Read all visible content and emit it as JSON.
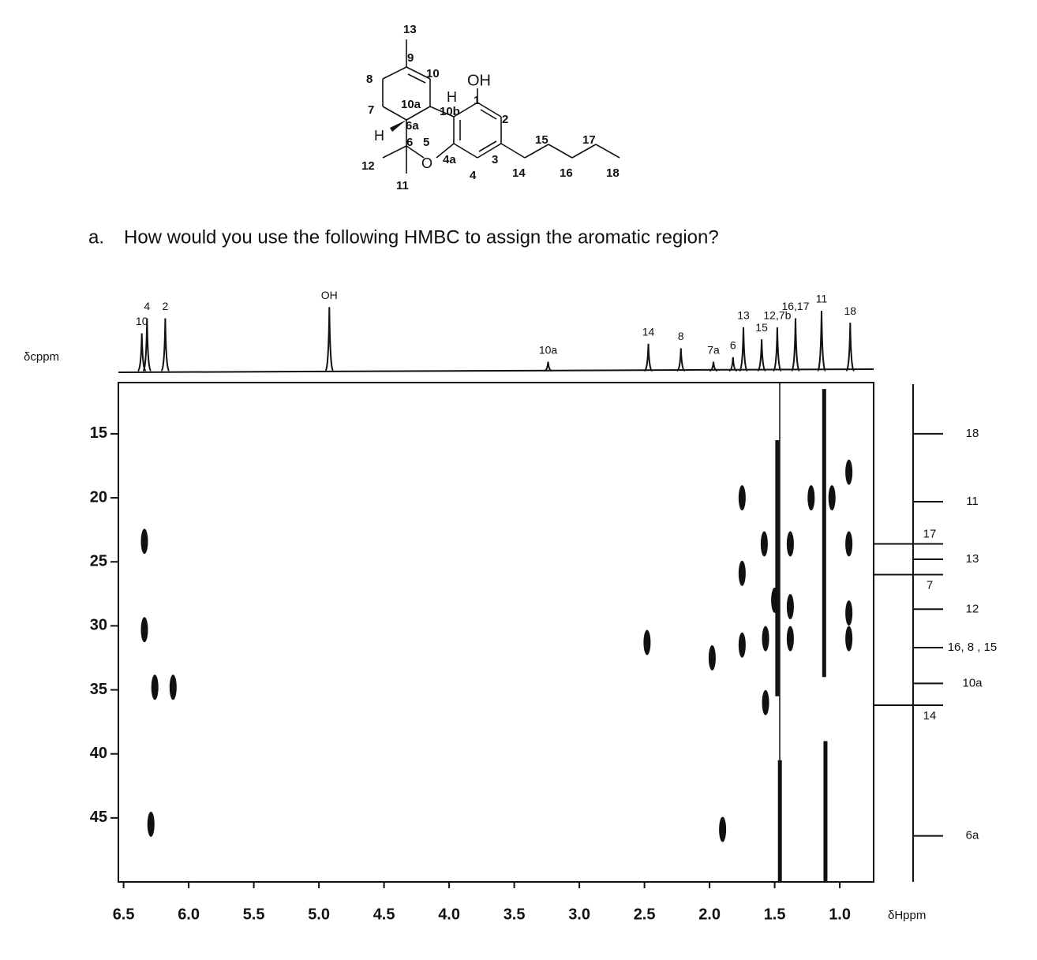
{
  "structure": {
    "labels": [
      "13",
      "9",
      "10",
      "8",
      "OH",
      "H",
      "10a",
      "10b",
      "1",
      "7",
      "2",
      "6a",
      "H",
      "6",
      "5",
      "15",
      "17",
      "12",
      "O",
      "4a",
      "3",
      "14",
      "16",
      "18",
      "11",
      "4"
    ]
  },
  "question": {
    "marker": "a.",
    "text": "How would you use the following HMBC to assign the aromatic region?"
  },
  "chart_data": {
    "type": "hmbc",
    "ylabel": "δcppm",
    "xlabel": "δHppm",
    "xlim": [
      6.54,
      0.74
    ],
    "ylim": [
      11,
      50
    ],
    "xticks": [
      6.5,
      {
        "value": 6,
        "label": "6.0"
      },
      5.5,
      {
        "value": 5,
        "label": "5.0"
      },
      4.5,
      {
        "value": 4,
        "label": "4.0"
      },
      3.5,
      {
        "value": 3,
        "label": "3.0"
      },
      2.5,
      {
        "value": 2,
        "label": "2.0"
      },
      1.5,
      {
        "value": 1,
        "label": "1.0"
      }
    ],
    "yticks": [
      15,
      20,
      25,
      30,
      35,
      40,
      45
    ],
    "proton_peaks": [
      {
        "label": "10",
        "shift": 6.36,
        "intensity": 50
      },
      {
        "label": "4",
        "shift": 6.32,
        "intensity": 70
      },
      {
        "label": "2",
        "shift": 6.18,
        "intensity": 70
      },
      {
        "label": "OH",
        "shift": 4.92,
        "intensity": 85
      },
      {
        "label": "10a",
        "shift": 3.24,
        "intensity": 12
      },
      {
        "label": "14",
        "shift": 2.47,
        "intensity": 36
      },
      {
        "label": "8",
        "shift": 2.22,
        "intensity": 30
      },
      {
        "label": "7a",
        "shift": 1.97,
        "intensity": 12
      },
      {
        "label": "6",
        "shift": 1.82,
        "intensity": 18
      },
      {
        "label": "13",
        "shift": 1.74,
        "intensity": 58
      },
      {
        "label": "15",
        "shift": 1.6,
        "intensity": 42
      },
      {
        "label": "12,7b",
        "shift": 1.48,
        "intensity": 58
      },
      {
        "label": "16,17",
        "shift": 1.34,
        "intensity": 70
      },
      {
        "label": "11",
        "shift": 1.14,
        "intensity": 80
      },
      {
        "label": "18",
        "shift": 0.92,
        "intensity": 64
      }
    ],
    "carbon_lines": [
      {
        "label": "18",
        "shift": 15.0
      },
      {
        "label": "11",
        "shift": 20.3
      },
      {
        "label": "17",
        "shift": 23.6
      },
      {
        "label": "13",
        "shift": 24.8
      },
      {
        "label": "7",
        "shift": 26.0
      },
      {
        "label": "12",
        "shift": 28.7
      },
      {
        "label": "16, 8 , 15",
        "shift": 31.7
      },
      {
        "label": "10a",
        "shift": 34.5
      },
      {
        "label": "14",
        "shift": 36.2
      },
      {
        "label": "6a",
        "shift": 46.4
      }
    ],
    "cross_peaks": {
      "x": [
        6.34,
        6.34,
        6.26,
        6.12,
        6.29,
        2.48,
        1.98,
        1.9,
        1.75,
        1.75,
        1.75,
        1.58,
        1.57,
        1.57,
        1.5,
        1.38,
        1.38,
        1.38,
        1.22,
        1.06,
        0.93,
        0.93,
        0.93,
        0.93
      ],
      "y": [
        23.4,
        30.3,
        34.8,
        34.8,
        45.5,
        31.3,
        32.5,
        45.9,
        20.0,
        25.9,
        31.5,
        23.6,
        31.0,
        36.0,
        28.0,
        23.6,
        31.0,
        28.5,
        20.0,
        20.0,
        18.0,
        23.6,
        31.0,
        29.0
      ]
    },
    "streaks": {
      "x": [
        1.48,
        1.46,
        1.12,
        1.11
      ],
      "y_start": [
        15.5,
        40.5,
        11.5,
        39.0
      ],
      "y_end": [
        35.5,
        50,
        34.0,
        50
      ]
    }
  }
}
